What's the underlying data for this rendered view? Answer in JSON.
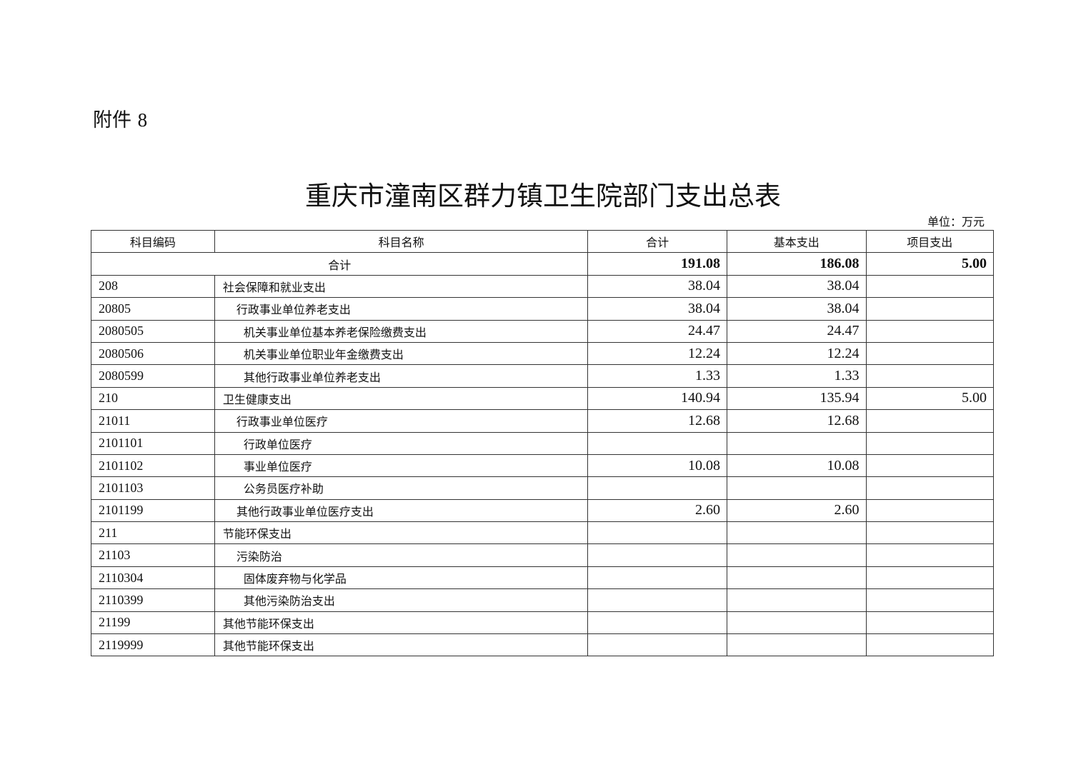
{
  "attachment": {
    "label": "附件",
    "number": "8"
  },
  "title": "重庆市潼南区群力镇卫生院部门支出总表",
  "unit": "单位：万元",
  "table": {
    "headers": [
      "科目编码",
      "科目名称",
      "合计",
      "基本支出",
      "项目支出"
    ],
    "total": {
      "label": "合计",
      "total": "191.08",
      "basic": "186.08",
      "project": "5.00"
    },
    "rows": [
      {
        "code": "208",
        "name": "社会保障和就业支出",
        "level": 0,
        "total": "38.04",
        "basic": "38.04",
        "project": ""
      },
      {
        "code": "20805",
        "name": "行政事业单位养老支出",
        "level": 1,
        "total": "38.04",
        "basic": "38.04",
        "project": ""
      },
      {
        "code": "2080505",
        "name": "机关事业单位基本养老保险缴费支出",
        "level": 2,
        "total": "24.47",
        "basic": "24.47",
        "project": ""
      },
      {
        "code": "2080506",
        "name": "机关事业单位职业年金缴费支出",
        "level": 2,
        "total": "12.24",
        "basic": "12.24",
        "project": ""
      },
      {
        "code": "2080599",
        "name": "其他行政事业单位养老支出",
        "level": 2,
        "total": "1.33",
        "basic": "1.33",
        "project": ""
      },
      {
        "code": "210",
        "name": "卫生健康支出",
        "level": 0,
        "total": "140.94",
        "basic": "135.94",
        "project": "5.00"
      },
      {
        "code": "21011",
        "name": "行政事业单位医疗",
        "level": 1,
        "total": "12.68",
        "basic": "12.68",
        "project": ""
      },
      {
        "code": "2101101",
        "name": "行政单位医疗",
        "level": 2,
        "total": "",
        "basic": "",
        "project": ""
      },
      {
        "code": "2101102",
        "name": "事业单位医疗",
        "level": 2,
        "total": "10.08",
        "basic": "10.08",
        "project": ""
      },
      {
        "code": "2101103",
        "name": "公务员医疗补助",
        "level": 2,
        "total": "",
        "basic": "",
        "project": ""
      },
      {
        "code": "2101199",
        "name": "其他行政事业单位医疗支出",
        "level": 1,
        "total": "2.60",
        "basic": "2.60",
        "project": ""
      },
      {
        "code": "211",
        "name": "节能环保支出",
        "level": 0,
        "total": "",
        "basic": "",
        "project": ""
      },
      {
        "code": "21103",
        "name": "污染防治",
        "level": 1,
        "total": "",
        "basic": "",
        "project": ""
      },
      {
        "code": "2110304",
        "name": "固体废弃物与化学品",
        "level": 2,
        "total": "",
        "basic": "",
        "project": ""
      },
      {
        "code": "2110399",
        "name": "其他污染防治支出",
        "level": 2,
        "total": "",
        "basic": "",
        "project": ""
      },
      {
        "code": "21199",
        "name": "其他节能环保支出",
        "level": 0,
        "total": "",
        "basic": "",
        "project": ""
      },
      {
        "code": "2119999",
        "name": "其他节能环保支出",
        "level": 0,
        "total": "",
        "basic": "",
        "project": ""
      }
    ]
  }
}
